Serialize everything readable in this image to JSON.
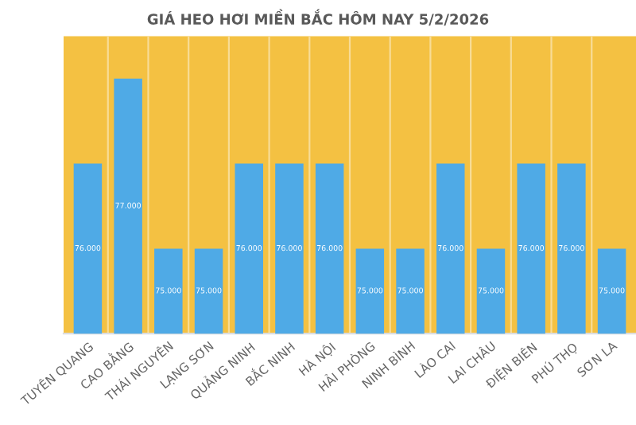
{
  "chart_data": {
    "type": "bar",
    "title": "GIÁ HEO HƠI MIỀN BẮC HÔM NAY 5/2/2026",
    "categories": [
      "TUYÊN QUANG",
      "CAO BẰNG",
      "THÁI NGUYÊN",
      "LẠNG SƠN",
      "QUẢNG NINH",
      "BẮC NINH",
      "HÀ NỘI",
      "HẢI PHÒNG",
      "NINH BÌNH",
      "LÀO CAI",
      "LAI CHÂU",
      "ĐIỆN BIÊN",
      "PHÚ THỌ",
      "SƠN LA"
    ],
    "values": [
      76000,
      77000,
      75000,
      75000,
      76000,
      76000,
      76000,
      75000,
      75000,
      76000,
      75000,
      76000,
      76000,
      75000
    ],
    "value_labels": [
      "76.000",
      "77.000",
      "75.000",
      "75.000",
      "76.000",
      "76.000",
      "76.000",
      "75.000",
      "75.000",
      "76.000",
      "75.000",
      "76.000",
      "76.000",
      "75.000"
    ],
    "color": "#4faae6",
    "ylim": [
      74000,
      77500
    ],
    "tick_labels": "x",
    "grid": "x"
  }
}
